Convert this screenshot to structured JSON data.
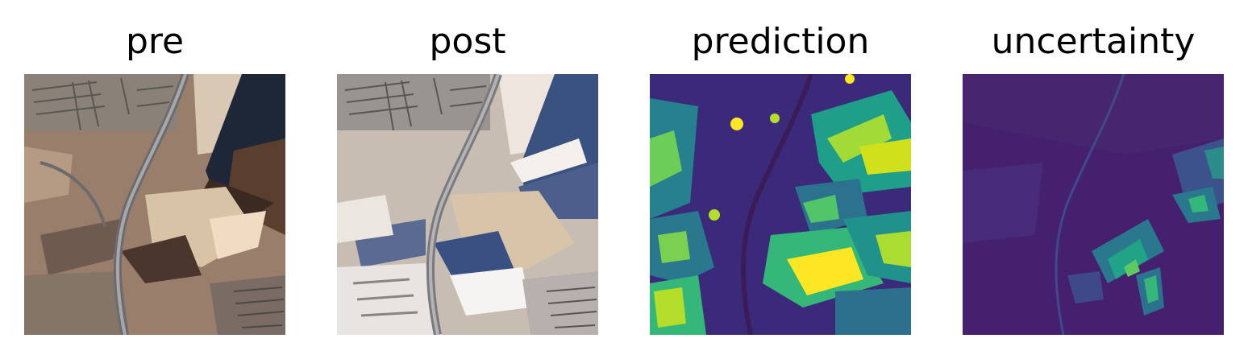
{
  "figure": {
    "panels": [
      {
        "title": "pre",
        "kind": "rgb-satellite",
        "colormap": "natural color"
      },
      {
        "title": "post",
        "kind": "rgb-satellite",
        "colormap": "natural color, snow cover"
      },
      {
        "title": "prediction",
        "kind": "heatmap",
        "colormap": "viridis"
      },
      {
        "title": "uncertainty",
        "kind": "heatmap",
        "colormap": "viridis"
      }
    ]
  },
  "colors": {
    "background": "#ffffff",
    "title_text": "#000000",
    "pre_base": "#9a7e6c",
    "post_base": "#c8bdb2",
    "viridis_low": "#440154",
    "viridis_mid": "#21918c",
    "viridis_high": "#fde725"
  }
}
